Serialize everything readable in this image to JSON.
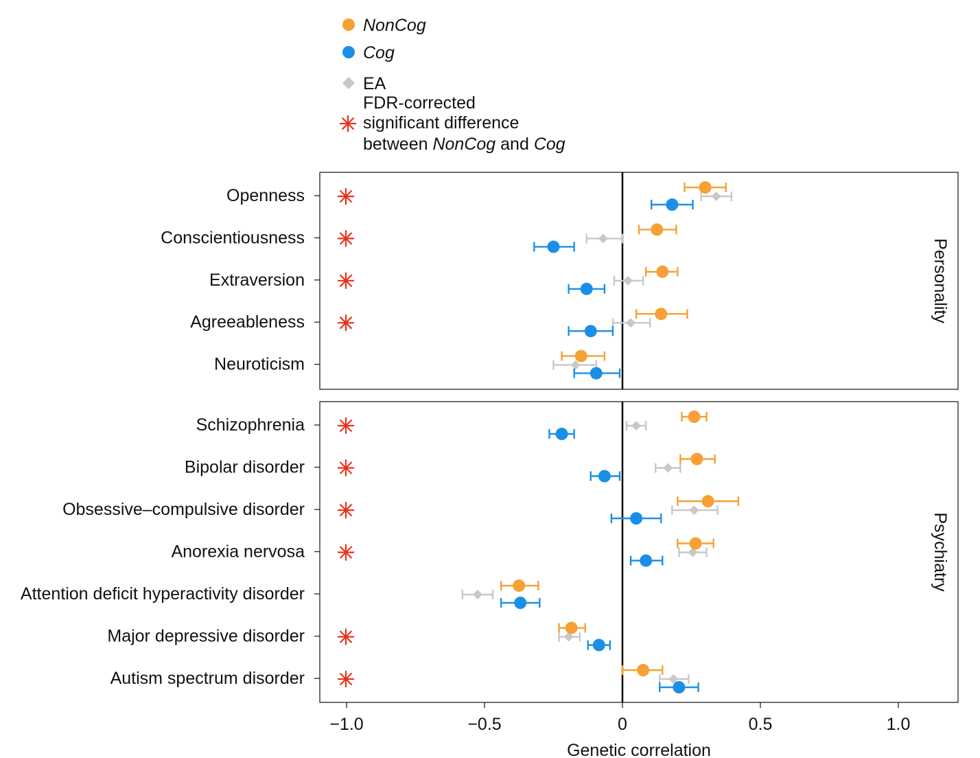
{
  "chart_data": {
    "type": "forest",
    "xlabel": "Genetic correlation",
    "xlim": [
      -1.1,
      1.22
    ],
    "xticks": [
      -1.0,
      -0.5,
      0,
      0.5,
      1.0
    ],
    "xtick_labels": [
      "−1.0",
      "−0.5",
      "0",
      "0.5",
      "1.0"
    ],
    "grid": false,
    "legend_position": "top-center",
    "legend": {
      "items": [
        {
          "key": "noncog",
          "label": "NonCog",
          "italic": true,
          "marker": "circle",
          "color": "#F7A035"
        },
        {
          "key": "cog",
          "label": "Cog",
          "italic": true,
          "marker": "circle",
          "color": "#1A8FE8"
        },
        {
          "key": "ea",
          "label": "EA",
          "italic": false,
          "marker": "diamond",
          "color": "#C8C8C8"
        }
      ],
      "significance": {
        "marker": "asterisk",
        "color": "#E8311A",
        "lines": [
          [
            {
              "text": "FDR-corrected",
              "italic": false
            }
          ],
          [
            {
              "text": "significant difference",
              "italic": false
            }
          ],
          [
            {
              "text": "between ",
              "italic": false
            },
            {
              "text": "NonCog",
              "italic": true
            },
            {
              "text": " and ",
              "italic": false
            },
            {
              "text": "Cog",
              "italic": true
            }
          ]
        ]
      }
    },
    "panels": [
      {
        "name": "Personality",
        "rows": [
          {
            "label": "Openness",
            "significant": true,
            "noncog": {
              "est": 0.3,
              "lo": 0.225,
              "hi": 0.375
            },
            "ea": {
              "est": 0.34,
              "lo": 0.285,
              "hi": 0.395
            },
            "cog": {
              "est": 0.18,
              "lo": 0.105,
              "hi": 0.255
            }
          },
          {
            "label": "Conscientiousness",
            "significant": true,
            "noncog": {
              "est": 0.125,
              "lo": 0.06,
              "hi": 0.195
            },
            "ea": {
              "est": -0.07,
              "lo": -0.13,
              "hi": 0.0
            },
            "cog": {
              "est": -0.25,
              "lo": -0.32,
              "hi": -0.175
            }
          },
          {
            "label": "Extraversion",
            "significant": true,
            "noncog": {
              "est": 0.145,
              "lo": 0.085,
              "hi": 0.2
            },
            "ea": {
              "est": 0.02,
              "lo": -0.03,
              "hi": 0.075
            },
            "cog": {
              "est": -0.13,
              "lo": -0.195,
              "hi": -0.065
            }
          },
          {
            "label": "Agreeableness",
            "significant": true,
            "noncog": {
              "est": 0.14,
              "lo": 0.05,
              "hi": 0.235
            },
            "ea": {
              "est": 0.03,
              "lo": -0.035,
              "hi": 0.1
            },
            "cog": {
              "est": -0.115,
              "lo": -0.195,
              "hi": -0.035
            }
          },
          {
            "label": "Neuroticism",
            "significant": false,
            "noncog": {
              "est": -0.15,
              "lo": -0.22,
              "hi": -0.065
            },
            "ea": {
              "est": -0.17,
              "lo": -0.25,
              "hi": -0.095
            },
            "cog": {
              "est": -0.095,
              "lo": -0.175,
              "hi": -0.01
            }
          }
        ]
      },
      {
        "name": "Psychiatry",
        "rows": [
          {
            "label": "Schizophrenia",
            "significant": true,
            "noncog": {
              "est": 0.26,
              "lo": 0.215,
              "hi": 0.305
            },
            "ea": {
              "est": 0.05,
              "lo": 0.015,
              "hi": 0.085
            },
            "cog": {
              "est": -0.22,
              "lo": -0.265,
              "hi": -0.175
            }
          },
          {
            "label": "Bipolar disorder",
            "significant": true,
            "noncog": {
              "est": 0.27,
              "lo": 0.21,
              "hi": 0.335
            },
            "ea": {
              "est": 0.165,
              "lo": 0.12,
              "hi": 0.21
            },
            "cog": {
              "est": -0.065,
              "lo": -0.115,
              "hi": -0.01
            }
          },
          {
            "label": "Obsessive–compulsive disorder",
            "significant": true,
            "noncog": {
              "est": 0.31,
              "lo": 0.2,
              "hi": 0.42
            },
            "ea": {
              "est": 0.26,
              "lo": 0.18,
              "hi": 0.345
            },
            "cog": {
              "est": 0.05,
              "lo": -0.04,
              "hi": 0.14
            }
          },
          {
            "label": "Anorexia nervosa",
            "significant": true,
            "noncog": {
              "est": 0.265,
              "lo": 0.2,
              "hi": 0.33
            },
            "ea": {
              "est": 0.255,
              "lo": 0.205,
              "hi": 0.305
            },
            "cog": {
              "est": 0.085,
              "lo": 0.03,
              "hi": 0.145
            }
          },
          {
            "label": "Attention deficit hyperactivity disorder",
            "significant": false,
            "noncog": {
              "est": -0.375,
              "lo": -0.44,
              "hi": -0.305
            },
            "ea": {
              "est": -0.525,
              "lo": -0.58,
              "hi": -0.47
            },
            "cog": {
              "est": -0.37,
              "lo": -0.44,
              "hi": -0.3
            }
          },
          {
            "label": "Major depressive disorder",
            "significant": true,
            "noncog": {
              "est": -0.185,
              "lo": -0.23,
              "hi": -0.135
            },
            "ea": {
              "est": -0.195,
              "lo": -0.23,
              "hi": -0.155
            },
            "cog": {
              "est": -0.085,
              "lo": -0.125,
              "hi": -0.045
            }
          },
          {
            "label": "Autism spectrum disorder",
            "significant": true,
            "noncog": {
              "est": 0.075,
              "lo": 0.0,
              "hi": 0.145
            },
            "ea": {
              "est": 0.185,
              "lo": 0.135,
              "hi": 0.24
            },
            "cog": {
              "est": 0.205,
              "lo": 0.135,
              "hi": 0.275
            }
          }
        ]
      }
    ]
  }
}
